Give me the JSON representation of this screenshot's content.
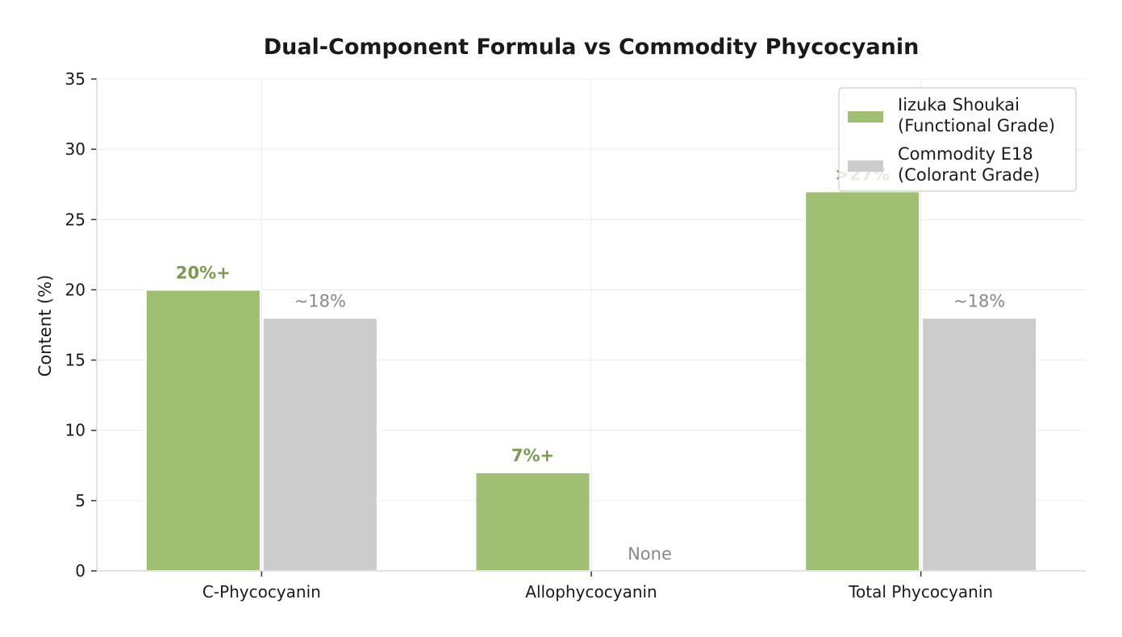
{
  "chart_data": {
    "type": "bar",
    "title": "Dual-Component Formula vs Commodity Phycocyanin",
    "xlabel": "",
    "ylabel": "Content (%)",
    "ylim": [
      0,
      35
    ],
    "yticks": [
      0,
      5,
      10,
      15,
      20,
      25,
      30,
      35
    ],
    "categories": [
      "C-Phycocyanin",
      "Allophycocyanin",
      "Total Phycocyanin"
    ],
    "grid": true,
    "legend_position": "top-right",
    "series": [
      {
        "name_lines": [
          "Iizuka Shoukai",
          "(Functional Grade)"
        ],
        "values": [
          20,
          7,
          27
        ],
        "labels": [
          "20%+",
          "7%+",
          ">27%"
        ],
        "color": "#a0bf72",
        "label_color": "#7a9a52"
      },
      {
        "name_lines": [
          "Commodity E18",
          "(Colorant Grade)"
        ],
        "values": [
          18,
          0,
          18
        ],
        "labels": [
          "~18%",
          "None",
          "~18%"
        ],
        "color": "#cccccc",
        "label_color": "#888888"
      }
    ]
  }
}
